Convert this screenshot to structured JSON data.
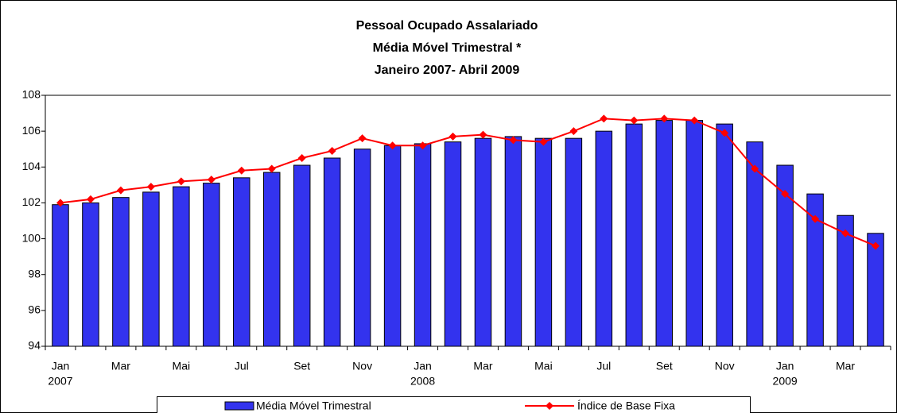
{
  "chart_data": {
    "type": "bar_line",
    "title": [
      "Pessoal Ocupado Assalariado",
      "Média Móvel Trimestral *",
      "Janeiro 2007- Abril 2009"
    ],
    "categories": [
      [
        "Jan",
        "2007"
      ],
      null,
      [
        "Mar"
      ],
      null,
      [
        "Mai"
      ],
      null,
      [
        "Jul"
      ],
      null,
      [
        "Set"
      ],
      null,
      [
        "Nov"
      ],
      null,
      [
        "Jan",
        "2008"
      ],
      null,
      [
        "Mar"
      ],
      null,
      [
        "Mai"
      ],
      null,
      [
        "Jul"
      ],
      null,
      [
        "Set"
      ],
      null,
      [
        "Nov"
      ],
      null,
      [
        "Jan",
        "2009"
      ],
      null,
      [
        "Mar"
      ],
      null
    ],
    "series": [
      {
        "name": "Média Móvel Trimestral",
        "type": "bar",
        "color": "#3333ee",
        "values": [
          101.9,
          102.0,
          102.3,
          102.6,
          102.9,
          103.1,
          103.4,
          103.7,
          104.1,
          104.5,
          105.0,
          105.2,
          105.3,
          105.4,
          105.6,
          105.7,
          105.6,
          105.6,
          106.0,
          106.4,
          106.6,
          106.6,
          106.4,
          105.4,
          104.1,
          102.5,
          101.3,
          100.3
        ]
      },
      {
        "name": "Índice de Base Fixa",
        "type": "line",
        "color": "#ff0000",
        "values": [
          102.0,
          102.2,
          102.7,
          102.9,
          103.2,
          103.3,
          103.8,
          103.9,
          104.5,
          104.9,
          105.6,
          105.2,
          105.2,
          105.7,
          105.8,
          105.5,
          105.4,
          106.0,
          106.7,
          106.6,
          106.7,
          106.6,
          105.9,
          103.9,
          102.5,
          101.1,
          100.3,
          99.6
        ]
      }
    ],
    "ylim": [
      94,
      108
    ],
    "yticks": [
      94,
      96,
      98,
      100,
      102,
      104,
      106,
      108
    ],
    "grid": false,
    "legend": "bottom"
  }
}
